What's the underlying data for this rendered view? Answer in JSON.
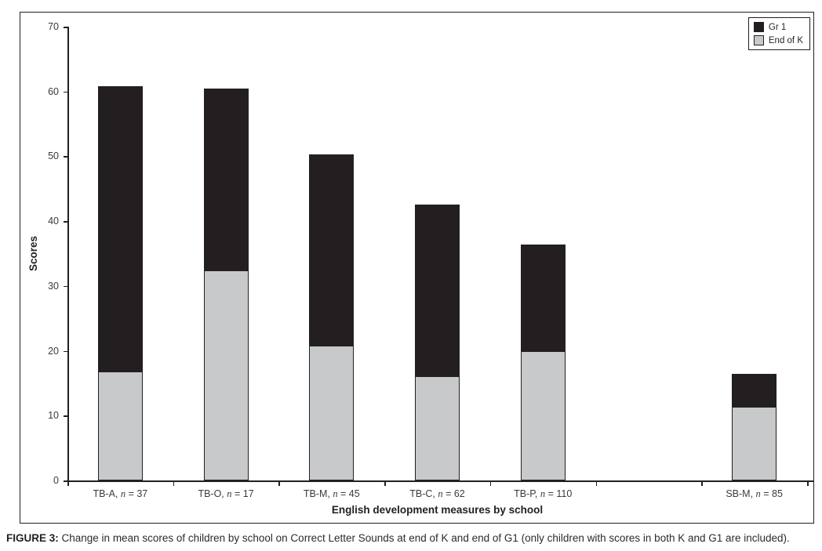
{
  "figure": {
    "caption_label": "FIGURE 3:",
    "caption_text": " Change in mean scores of children by school on Correct Letter Sounds at end of K and end of G1 (only children with scores in both K and G1 are included)."
  },
  "chart_data": {
    "type": "bar",
    "stacked": true,
    "title": "",
    "xlabel": "English development measures by school",
    "ylabel": "Scores",
    "ylim": [
      0,
      70
    ],
    "ytick_step": 10,
    "grid": false,
    "legend_position": "top-right",
    "legend": [
      {
        "label": "Gr 1",
        "color": "#231f20"
      },
      {
        "label": "End of K",
        "color": "#c8c9cb"
      }
    ],
    "slots": 7,
    "bars": [
      {
        "slot": 0,
        "school": "TB-A",
        "n": 37,
        "end_of_k": 16.8,
        "end_of_g1": 60.8
      },
      {
        "slot": 1,
        "school": "TB-O",
        "n": 17,
        "end_of_k": 32.4,
        "end_of_g1": 60.4
      },
      {
        "slot": 2,
        "school": "TB-M",
        "n": 45,
        "end_of_k": 20.8,
        "end_of_g1": 50.3
      },
      {
        "slot": 3,
        "school": "TB-C",
        "n": 62,
        "end_of_k": 16.1,
        "end_of_g1": 42.6
      },
      {
        "slot": 4,
        "school": "TB-P",
        "n": 110,
        "end_of_k": 19.9,
        "end_of_g1": 36.4
      },
      {
        "slot": 6,
        "school": "SB-M",
        "n": 85,
        "end_of_k": 11.4,
        "end_of_g1": 16.4
      }
    ]
  }
}
